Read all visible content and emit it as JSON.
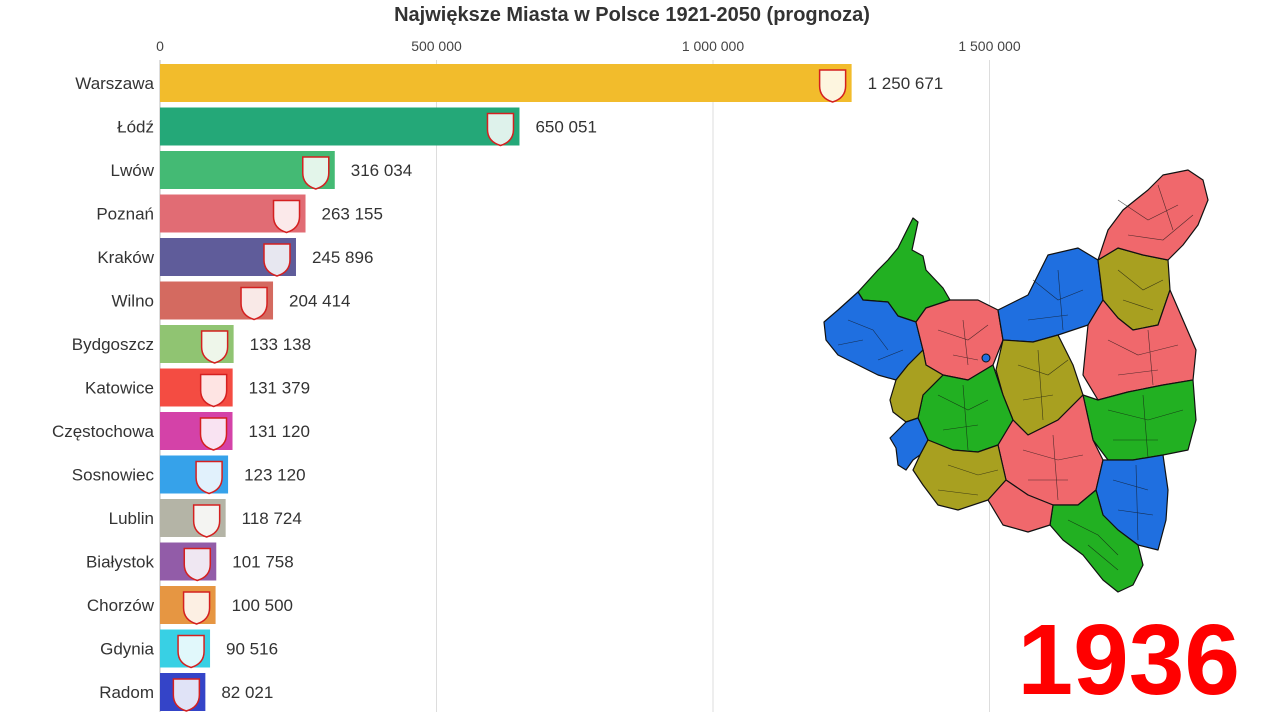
{
  "title": "Największe Miasta w Polsce 1921-2050 (prognoza)",
  "year": "1936",
  "chart_data": {
    "type": "bar",
    "title": "Największe Miasta w Polsce 1921-2050 (prognoza)",
    "orientation": "horizontal",
    "xlim": [
      0,
      1500000
    ],
    "xticks": [
      0,
      500000,
      1000000,
      1500000
    ],
    "xtick_labels": [
      "0",
      "500 000",
      "1 000 000",
      "1 500 000"
    ],
    "grid": true,
    "categories": [
      "Warszawa",
      "Łódź",
      "Lwów",
      "Poznań",
      "Kraków",
      "Wilno",
      "Bydgoszcz",
      "Katowice",
      "Częstochowa",
      "Sosnowiec",
      "Lublin",
      "Białystok",
      "Chorzów",
      "Gdynia",
      "Radom"
    ],
    "values": [
      1250671,
      650051,
      316034,
      263155,
      245896,
      204414,
      133138,
      131379,
      131120,
      123120,
      118724,
      101758,
      100500,
      90516,
      82021
    ],
    "value_labels": [
      "1 250 671",
      "650 051",
      "316 034",
      "263 155",
      "245 896",
      "204 414",
      "133 138",
      "131 379",
      "131 120",
      "123 120",
      "118 724",
      "101 758",
      "100 500",
      "90 516",
      "82 021"
    ],
    "colors": [
      "#f2bc2c",
      "#24a878",
      "#44ba74",
      "#e16c74",
      "#5f5c9a",
      "#d46a60",
      "#90c472",
      "#f44c42",
      "#d442a8",
      "#36a2ea",
      "#b4b4a6",
      "#925ca8",
      "#e69642",
      "#38d0e4",
      "#3444c8"
    ]
  },
  "map": {
    "region_colors": [
      "#1f6fe0",
      "#22b022",
      "#f0686c",
      "#a8a020"
    ]
  }
}
